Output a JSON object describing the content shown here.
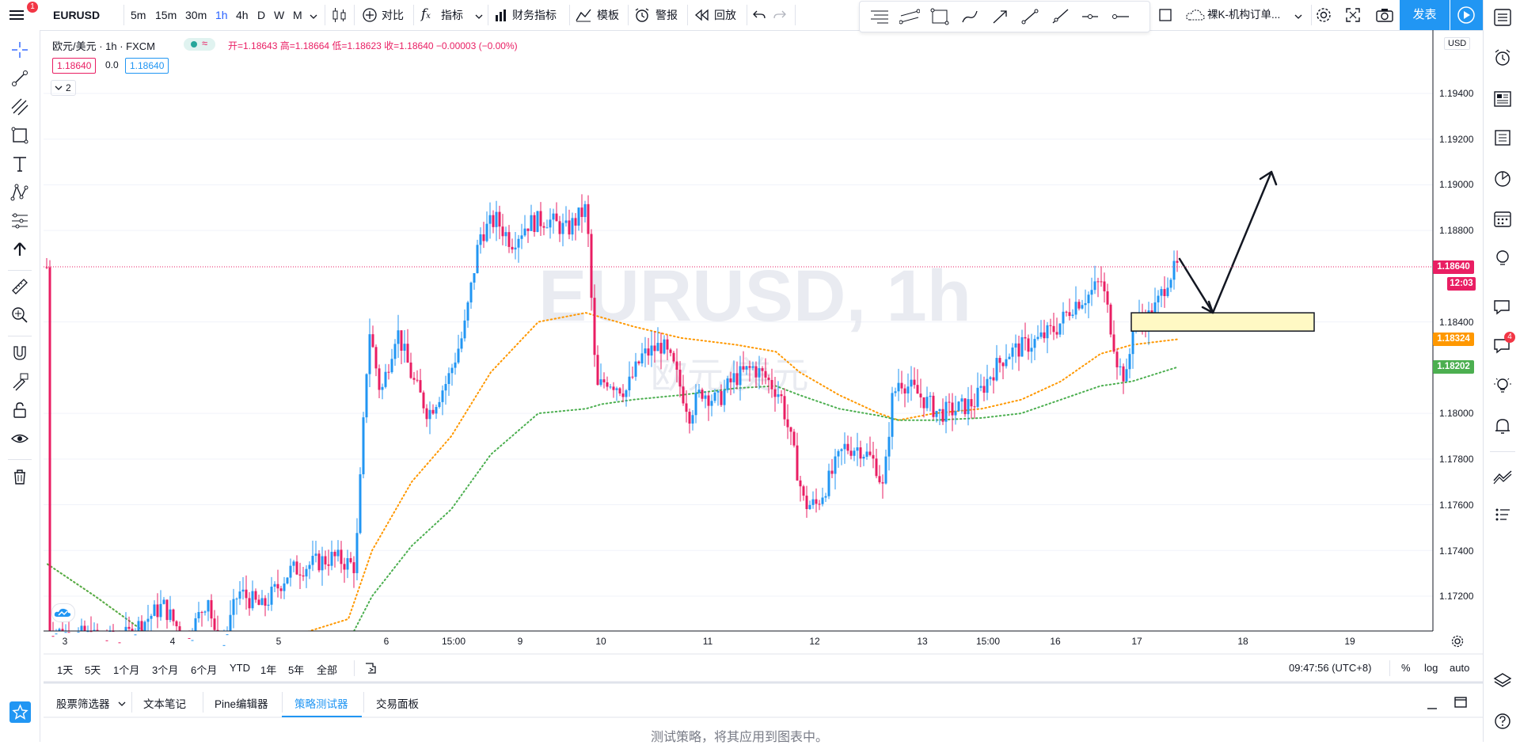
{
  "topbar": {
    "symbol": "EURUSD",
    "timeframes": [
      "5m",
      "15m",
      "30m",
      "1h",
      "4h",
      "D",
      "W",
      "M"
    ],
    "active_timeframe": "1h",
    "compare_label": "对比",
    "indicators_label": "指标",
    "financials_label": "财务指标",
    "templates_label": "模板",
    "alert_label": "警报",
    "replay_label": "回放",
    "layout_name": "裸K-机构订单...",
    "publish_label": "发表",
    "menu_badge": "1"
  },
  "legend": {
    "title": "欧元/美元 · 1h · FXCM",
    "ohlc": "开=1.18643 高=1.18664 低=1.18623 收=1.18640 −0.00003 (−0.00%)",
    "bid": "1.18640",
    "spread": "0.0",
    "ask": "1.18640",
    "collapse_count": "2"
  },
  "watermark": {
    "symbol": "EURUSD, 1h",
    "name": "欧元/美元"
  },
  "price_scale": {
    "currency": "USD",
    "ticks": [
      "1.19400",
      "1.19200",
      "1.19000",
      "1.18800",
      "1.18400",
      "1.18000",
      "1.17800",
      "1.17600",
      "1.17400",
      "1.17200"
    ],
    "last_price": "1.18640",
    "countdown": "12:03",
    "ma_fast": "1.18324",
    "ma_slow": "1.18202",
    "colors": {
      "last": "#e91e63",
      "fast": "#ff9800",
      "slow": "#4caf50"
    }
  },
  "time_scale": {
    "ticks": [
      "3",
      "4",
      "5",
      "6",
      "15:00",
      "9",
      "10",
      "11",
      "12",
      "13",
      "15:00",
      "16",
      "17",
      "18",
      "19"
    ]
  },
  "bottom_bar": {
    "ranges": [
      "1天",
      "5天",
      "1个月",
      "3个月",
      "6个月",
      "YTD",
      "1年",
      "5年",
      "全部"
    ],
    "clock": "09:47:56 (UTC+8)",
    "percent": "%",
    "log": "log",
    "auto": "auto"
  },
  "bottom_tabs": {
    "items": [
      "股票筛选器",
      "文本笔记",
      "Pine编辑器",
      "策略测试器",
      "交易面板"
    ],
    "active": "策略测试器",
    "message": "测试策略，将其应用到图表中。"
  },
  "right_toolbar": {
    "notification_badge": "4"
  },
  "chart_data": {
    "type": "candlestick",
    "symbol": "EURUSD",
    "interval": "1h",
    "ylim": [
      1.171,
      1.196
    ],
    "overlays": [
      {
        "kind": "moving-average",
        "color": "#ff9800",
        "style": "dotted",
        "last": 1.18324
      },
      {
        "kind": "moving-average",
        "color": "#4caf50",
        "style": "dotted",
        "last": 1.18202
      }
    ],
    "drawings": [
      {
        "kind": "rectangle",
        "fill": "#fff9c4",
        "price_top": 1.1844,
        "price_bottom": 1.1836
      },
      {
        "kind": "arrow-path"
      }
    ]
  }
}
